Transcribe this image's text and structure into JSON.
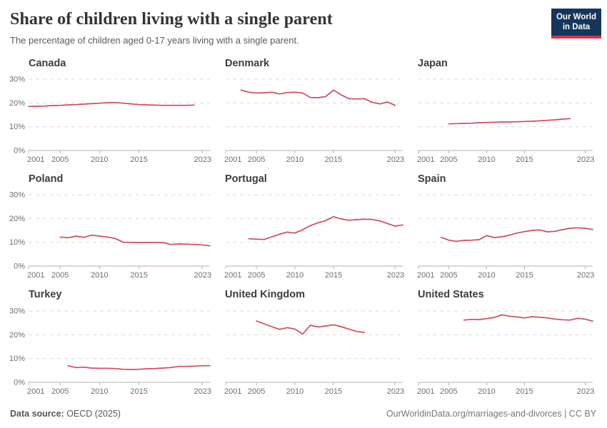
{
  "header": {
    "title": "Share of children living with a single parent",
    "subtitle": "The percentage of children aged 0-17 years living with a single parent.",
    "logo": {
      "line1": "Our World",
      "line2": "in Data",
      "bg_color": "#16355c",
      "accent_color": "#e02f44"
    }
  },
  "footer": {
    "source_label": "Data source:",
    "source_value": " OECD (2025)",
    "credit": "OurWorldinData.org/marriages-and-divorces | CC BY"
  },
  "style": {
    "line_color": "#cf4a5e",
    "grid_color": "#dcdcdc",
    "axis_color": "#b3b3b3",
    "tick_label_color": "#6e6e6e"
  },
  "chart_data": {
    "type": "line",
    "unit": "%",
    "xlim": [
      2001,
      2024
    ],
    "ylim": [
      0,
      30
    ],
    "xticks": [
      2001,
      2005,
      2010,
      2015,
      2023
    ],
    "yticks": [
      0,
      10,
      20,
      30
    ],
    "grid": "dashed-horizontal",
    "legend": "none",
    "charts": [
      {
        "title": "Canada",
        "show_y_labels": true,
        "start_year": 2001,
        "values": [
          18.5,
          18.6,
          18.7,
          18.9,
          19.0,
          19.2,
          19.3,
          19.5,
          19.7,
          19.9,
          20.1,
          20.2,
          19.9,
          19.6,
          19.3,
          19.2,
          19.1,
          19.0,
          19.0,
          19.0,
          19.0,
          19.1
        ]
      },
      {
        "title": "Denmark",
        "show_y_labels": false,
        "start_year": 2003,
        "values": [
          25.4,
          24.5,
          24.2,
          24.3,
          24.5,
          23.8,
          24.4,
          24.5,
          24.2,
          22.3,
          22.2,
          22.7,
          25.4,
          23.4,
          21.8,
          21.7,
          21.8,
          20.3,
          19.6,
          20.4,
          19.0
        ]
      },
      {
        "title": "Japan",
        "show_y_labels": false,
        "start_year": 2005,
        "values": [
          11.2,
          11.3,
          11.4,
          11.5,
          11.7,
          11.8,
          11.9,
          12.0,
          12.0,
          12.1,
          12.2,
          12.3,
          12.5,
          12.7,
          12.9,
          13.2,
          13.4
        ]
      },
      {
        "title": "Poland",
        "show_y_labels": true,
        "start_year": 2005,
        "values": [
          12.2,
          11.9,
          12.6,
          12.1,
          13.0,
          12.6,
          12.2,
          11.6,
          10.0,
          10.0,
          9.9,
          9.9,
          10.0,
          9.9,
          9.1,
          9.3,
          9.2,
          9.1,
          8.9,
          8.5
        ]
      },
      {
        "title": "Portugal",
        "show_y_labels": false,
        "start_year": 2004,
        "values": [
          11.5,
          11.3,
          11.2,
          12.3,
          13.4,
          14.3,
          13.9,
          15.3,
          17.0,
          18.2,
          19.1,
          20.8,
          19.8,
          19.3,
          19.5,
          19.7,
          19.6,
          19.0,
          17.9,
          16.8,
          17.3
        ]
      },
      {
        "title": "Spain",
        "show_y_labels": false,
        "start_year": 2004,
        "values": [
          12.1,
          10.9,
          10.4,
          10.8,
          10.9,
          11.1,
          12.8,
          12.0,
          12.3,
          13.0,
          13.9,
          14.5,
          15.0,
          15.2,
          14.4,
          14.6,
          15.3,
          15.9,
          16.1,
          15.9,
          15.4
        ]
      },
      {
        "title": "Turkey",
        "show_y_labels": true,
        "start_year": 2006,
        "values": [
          7.0,
          6.2,
          6.4,
          6.0,
          5.9,
          5.9,
          5.8,
          5.5,
          5.4,
          5.5,
          5.7,
          5.8,
          6.0,
          6.2,
          6.7,
          6.7,
          6.8,
          7.0,
          7.0
        ]
      },
      {
        "title": "United Kingdom",
        "show_y_labels": false,
        "start_year": 2005,
        "values": [
          25.8,
          24.6,
          23.4,
          22.3,
          23.0,
          22.4,
          20.3,
          24.0,
          23.3,
          23.7,
          24.2,
          23.4,
          22.4,
          21.4,
          21.0
        ]
      },
      {
        "title": "United States",
        "show_y_labels": false,
        "start_year": 2007,
        "values": [
          26.2,
          26.5,
          26.4,
          26.8,
          27.3,
          28.4,
          27.8,
          27.5,
          27.1,
          27.6,
          27.4,
          27.1,
          26.6,
          26.3,
          26.2,
          26.9,
          26.6,
          25.7
        ]
      }
    ]
  }
}
